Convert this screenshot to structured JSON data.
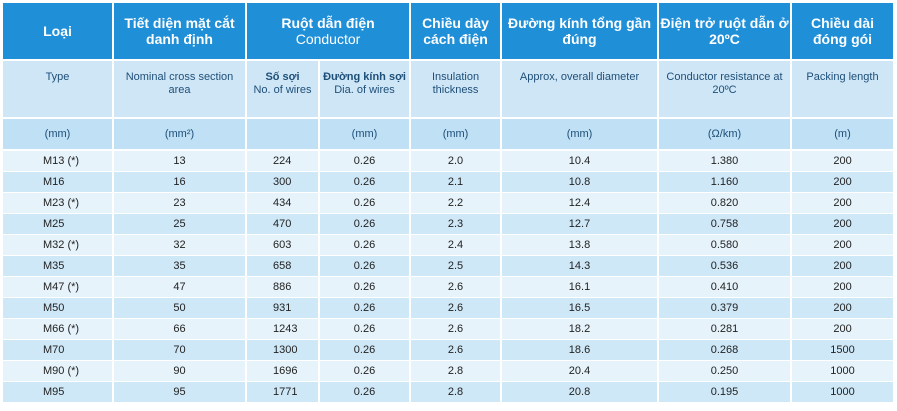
{
  "header_vn": {
    "type": "Loại",
    "section": "Tiết diện mặt cắt danh định",
    "conductor": "Ruột dẫn điện",
    "conductor_en": "Conductor",
    "insulation": "Chiều dày cách điện",
    "diameter": "Đường kính tổng gần đúng",
    "resistance": "Điện trở ruột dẫn ở 20ºC",
    "packing": "Chiều dài đóng gói"
  },
  "header_en": {
    "type": "Type",
    "section": "Nominal cross section area",
    "wires_vn": "Số sợi",
    "wires_en": "No. of wires",
    "dia_vn": "Đường kính sợi",
    "dia_en": "Dia. of wires",
    "insulation": "Insulation thickness",
    "diameter": "Approx, overall diameter",
    "resistance": "Conductor resistance at 20ºC",
    "packing": "Packing length"
  },
  "units": {
    "type": "(mm)",
    "section": "(mm²)",
    "wires": "",
    "dia": "(mm)",
    "insulation": "(mm)",
    "diameter": "(mm)",
    "resistance": "(Ω/km)",
    "packing": "(m)"
  },
  "rows": [
    [
      "M13 (*)",
      "13",
      "224",
      "0.26",
      "2.0",
      "10.4",
      "1.380",
      "200"
    ],
    [
      "M16",
      "16",
      "300",
      "0.26",
      "2.1",
      "10.8",
      "1.160",
      "200"
    ],
    [
      "M23 (*)",
      "23",
      "434",
      "0.26",
      "2.2",
      "12.4",
      "0.820",
      "200"
    ],
    [
      "M25",
      "25",
      "470",
      "0.26",
      "2.3",
      "12.7",
      "0.758",
      "200"
    ],
    [
      "M32 (*)",
      "32",
      "603",
      "0.26",
      "2.4",
      "13.8",
      "0.580",
      "200"
    ],
    [
      "M35",
      "35",
      "658",
      "0.26",
      "2.5",
      "14.3",
      "0.536",
      "200"
    ],
    [
      "M47 (*)",
      "47",
      "886",
      "0.26",
      "2.6",
      "16.1",
      "0.410",
      "200"
    ],
    [
      "M50",
      "50",
      "931",
      "0.26",
      "2.6",
      "16.5",
      "0.379",
      "200"
    ],
    [
      "M66 (*)",
      "66",
      "1243",
      "0.26",
      "2.6",
      "18.2",
      "0.281",
      "200"
    ],
    [
      "M70",
      "70",
      "1300",
      "0.26",
      "2.6",
      "18.6",
      "0.268",
      "1500"
    ],
    [
      "M90 (*)",
      "90",
      "1696",
      "0.26",
      "2.8",
      "20.4",
      "0.250",
      "1000"
    ],
    [
      "M95",
      "95",
      "1771",
      "0.26",
      "2.8",
      "20.8",
      "0.195",
      "1000"
    ]
  ]
}
